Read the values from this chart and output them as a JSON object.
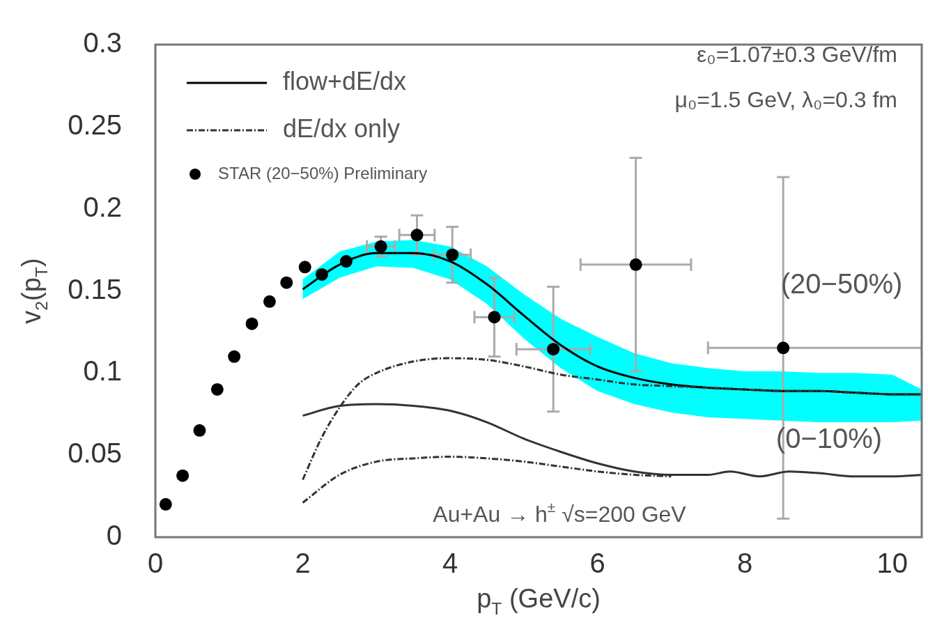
{
  "chart_data": {
    "type": "line",
    "xlabel": "p$_{T}$ (GeV/c)",
    "ylabel": "v$_{2}$(p$_{T}$)",
    "xlim": [
      0,
      10.4
    ],
    "xticks": [
      0,
      2,
      4,
      6,
      8,
      10
    ],
    "ylim": [
      0,
      0.3
    ],
    "yticks": [
      0,
      0.05,
      0.1,
      0.15,
      0.2,
      0.25,
      0.3
    ],
    "grid": false,
    "legend": "top left",
    "series": [
      {
        "name": "flow+dE/dx",
        "color": "#000000",
        "line_style": "solid",
        "x": [
          2,
          2.5,
          3,
          3.5,
          4,
          4.5,
          5,
          5.5,
          6,
          6.5,
          7,
          7.5,
          8,
          8.5,
          9,
          9.5,
          10,
          10.4
        ],
        "values": [
          0.151,
          0.166,
          0.173,
          0.173,
          0.168,
          0.154,
          0.135,
          0.117,
          0.104,
          0.097,
          0.093,
          0.091,
          0.09,
          0.089,
          0.089,
          0.088,
          0.087,
          0.087
        ],
        "upper": [
          0.157,
          0.174,
          0.18,
          0.181,
          0.177,
          0.165,
          0.148,
          0.133,
          0.122,
          0.112,
          0.106,
          0.103,
          0.101,
          0.101,
          0.1,
          0.1,
          0.099,
          0.09
        ],
        "lower": [
          0.145,
          0.158,
          0.165,
          0.164,
          0.157,
          0.142,
          0.121,
          0.103,
          0.089,
          0.081,
          0.076,
          0.073,
          0.072,
          0.071,
          0.07,
          0.07,
          0.07,
          0.071
        ]
      },
      {
        "name": "dE/dx only",
        "color": "#333333",
        "line_style": "dashed",
        "x": [
          2,
          2.25,
          2.5,
          2.75,
          3,
          3.5,
          4,
          4.5,
          5,
          5.5,
          6,
          6.5,
          7,
          7.5,
          8,
          8.5,
          9,
          9.5,
          10,
          10.4
        ],
        "values": [
          0.035,
          0.06,
          0.079,
          0.093,
          0.1,
          0.107,
          0.109,
          0.108,
          0.104,
          0.099,
          0.096,
          0.093,
          0.092,
          0.091,
          0.09,
          0.089,
          0.089,
          0.088,
          0.087,
          0.087
        ]
      },
      {
        "color": "#333333",
        "line_style": "solid",
        "x": [
          2,
          2.5,
          3,
          3.5,
          4,
          4.5,
          5,
          5.5,
          6,
          6.5,
          7,
          7.5,
          7.8,
          8.2,
          8.6,
          9,
          9.5,
          10,
          10.4
        ],
        "values": [
          0.074,
          0.08,
          0.081,
          0.08,
          0.077,
          0.07,
          0.06,
          0.052,
          0.045,
          0.04,
          0.038,
          0.038,
          0.04,
          0.037,
          0.04,
          0.039,
          0.037,
          0.037,
          0.038
        ]
      },
      {
        "color": "#333333",
        "line_style": "dashed",
        "x": [
          2,
          2.5,
          3,
          3.5,
          4,
          4.5,
          5,
          5.5,
          6,
          6.5,
          7
        ],
        "values": [
          0.021,
          0.038,
          0.046,
          0.048,
          0.049,
          0.048,
          0.046,
          0.043,
          0.04,
          0.038,
          0.037
        ]
      },
      {
        "name": "STAR (20−50%) Preliminary",
        "type": "scatter",
        "color": "#000000",
        "marker": "circle",
        "x": [
          0.14,
          0.37,
          0.6,
          0.84,
          1.07,
          1.31,
          1.55,
          1.78,
          2.03,
          2.26,
          2.59,
          3.06,
          3.55,
          4.03,
          4.6,
          5.4,
          6.52,
          8.52
        ],
        "values": [
          0.02,
          0.0375,
          0.065,
          0.09,
          0.11,
          0.13,
          0.1435,
          0.155,
          0.1645,
          0.16,
          0.168,
          0.177,
          0.184,
          0.172,
          0.134,
          0.1145,
          0.166,
          0.1153
        ],
        "errors": [
          null,
          null,
          null,
          null,
          null,
          null,
          null,
          null,
          null,
          null,
          null,
          0.006,
          0.012,
          0.017,
          0.024,
          0.038,
          0.065,
          0.104
        ],
        "xerrors": [
          null,
          null,
          null,
          null,
          null,
          null,
          null,
          null,
          null,
          null,
          null,
          0.19,
          0.24,
          0.25,
          0.27,
          0.5,
          0.75,
          [
            7.5,
            10.4
          ]
        ]
      }
    ],
    "annotations": [
      "ε₀=1.07±0.3 GeV/fm",
      "μ₀=1.5 GeV, λ₀=0.3 fm",
      "(20−50%)",
      "(0−10%)",
      "Au+Au → h$^{±}$ √s=200 GeV"
    ]
  }
}
